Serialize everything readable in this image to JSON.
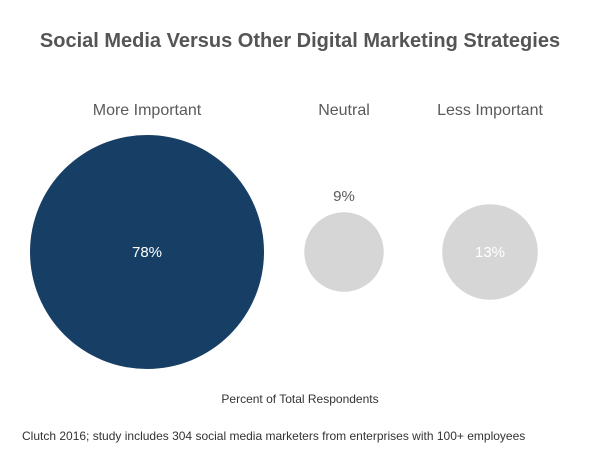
{
  "chart_data": {
    "type": "bubble",
    "title": "Social Media Versus Other Digital Marketing Strategies",
    "xlabel": "Percent of Total Respondents",
    "categories": [
      "More Important",
      "Neutral",
      "Less Important"
    ],
    "values": [
      78,
      9,
      13
    ],
    "value_labels": [
      "78%",
      "9%",
      "13%"
    ],
    "colors": [
      "#173f66",
      "#d6d6d6",
      "#d6d6d6"
    ],
    "source": "Clutch 2016; study includes 304 social media marketers from enterprises with 100+ employees"
  }
}
